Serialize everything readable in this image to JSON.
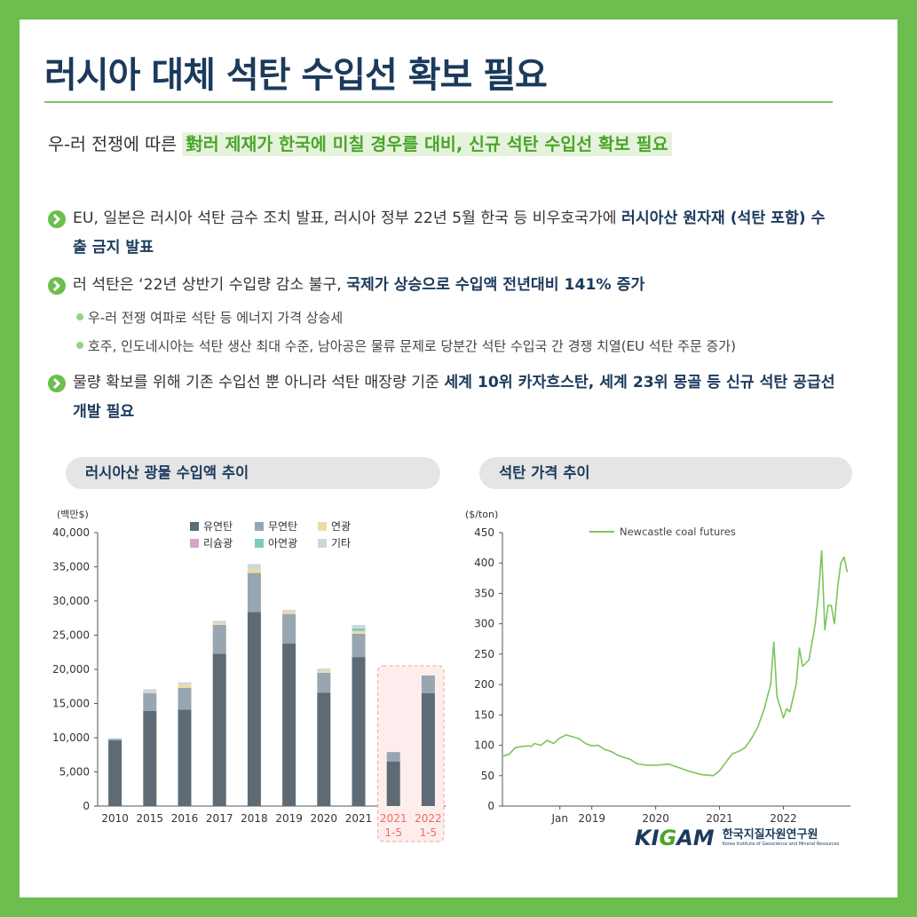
{
  "header": {
    "title": "러시아 대체 석탄 수입선 확보 필요"
  },
  "intro": {
    "prefix": "우-러 전쟁에 따른 ",
    "highlight": "對러 제재가 한국에 미칠 경우를 대비, 신규 석탄 수입선 확보 필요"
  },
  "bullets": [
    {
      "normal": "EU, 일본은 러시아 석탄 금수 조치 발표, 러시아 정부 22년 5월 한국 등 비우호국가에 ",
      "bold": "러시아산 원자재 (석탄 포함) 수출 금지 발표"
    },
    {
      "normal": "러 석탄은 ‘22년 상반기 수입량 감소 불구, ",
      "bold": "국제가 상승으로 수입액 전년대비 141% 증가"
    },
    {
      "normal": "물량 확보를 위해 기존 수입선 뿐 아니라 석탄 매장량 기준 ",
      "bold": "세계 10위 카자흐스탄, 세계 23위 몽골 등 신규 석탄 공급선 개발 필요"
    }
  ],
  "sub_bullets": [
    "우-러 전쟁 여파로 석탄 등 에너지 가격 상승세",
    "호주, 인도네시아는 석탄 생산 최대 수준, 남아공은 물류 문제로 당분간 석탄 수입국 간 경쟁 치열(EU 석탄 주문 증가)"
  ],
  "sections": {
    "left_title": "러시아산 광물 수입액 추이",
    "right_title": "석탄 가격 추이"
  },
  "colors": {
    "bituminous": "#5e6b75",
    "anthracite": "#97a6b1",
    "lead": "#f1d9a6",
    "lithium": "#d7a3cb",
    "zinc": "#79cbbf",
    "other": "#cfd6db",
    "line": "#7cc45c",
    "highlight_text": "#f26b5b",
    "brand_blue": "#1b3a5c",
    "brand_green": "#6cbf4e"
  },
  "chart_data": [
    {
      "type": "bar",
      "stacked": true,
      "ylabel": "(백만$)",
      "ylim": [
        0,
        40000
      ],
      "yticks": [
        0,
        5000,
        10000,
        15000,
        20000,
        25000,
        30000,
        35000,
        40000
      ],
      "ytick_labels": [
        "0",
        "5,000",
        "10,000",
        "15,000",
        "20,000",
        "25,000",
        "30,000",
        "35,000",
        "40,000"
      ],
      "categories": [
        "2010",
        "2015",
        "2016",
        "2017",
        "2018",
        "2019",
        "2020",
        "2021",
        "2021 1-5",
        "2022 1-5"
      ],
      "category_lines": [
        [
          "2010"
        ],
        [
          "2015"
        ],
        [
          "2016"
        ],
        [
          "2017"
        ],
        [
          "2018"
        ],
        [
          "2019"
        ],
        [
          "2020"
        ],
        [
          "2021"
        ],
        [
          "2021",
          "1-5"
        ],
        [
          "2022",
          "1-5"
        ]
      ],
      "highlighted_categories": [
        "2021 1-5",
        "2022 1-5"
      ],
      "legend_position": "top",
      "series": [
        {
          "name": "유연탄",
          "color": "#5e6b75",
          "values": [
            9600,
            13900,
            14100,
            22300,
            28400,
            23800,
            16600,
            21800,
            6500,
            16500
          ]
        },
        {
          "name": "무연탄",
          "color": "#97a6b1",
          "values": [
            200,
            2600,
            3200,
            4200,
            5700,
            4300,
            2900,
            3400,
            1400,
            2600
          ]
        },
        {
          "name": "연광",
          "color": "#f1d9a6",
          "values": [
            0,
            0,
            500,
            300,
            600,
            400,
            300,
            400,
            0,
            0
          ]
        },
        {
          "name": "리슘광",
          "color": "#d7a3cb",
          "values": [
            0,
            0,
            0,
            0,
            0,
            0,
            0,
            0,
            0,
            0
          ]
        },
        {
          "name": "아연광",
          "color": "#79cbbf",
          "values": [
            0,
            0,
            0,
            0,
            0,
            0,
            0,
            400,
            0,
            0
          ]
        },
        {
          "name": "기타",
          "color": "#cfd6db",
          "values": [
            100,
            600,
            300,
            300,
            700,
            200,
            300,
            500,
            0,
            0
          ]
        }
      ]
    },
    {
      "type": "line",
      "ylabel": "($/ton)",
      "ylim": [
        0,
        450
      ],
      "yticks": [
        0,
        50,
        100,
        150,
        200,
        250,
        300,
        350,
        400,
        450
      ],
      "xlim": [
        2017.6,
        2023.05
      ],
      "xticks": [
        2018.5,
        2019,
        2020,
        2021,
        2022
      ],
      "xtick_labels": [
        "Jan",
        "2019",
        "2020",
        "2021",
        "2022"
      ],
      "legend_position": "top-left",
      "series": [
        {
          "name": "Newcastle coal futures",
          "x": [
            2017.6,
            2017.7,
            2017.8,
            2017.9,
            2018.0,
            2018.05,
            2018.1,
            2018.2,
            2018.3,
            2018.4,
            2018.5,
            2018.6,
            2018.7,
            2018.8,
            2018.9,
            2019.0,
            2019.1,
            2019.2,
            2019.3,
            2019.4,
            2019.5,
            2019.6,
            2019.7,
            2019.8,
            2019.9,
            2020.0,
            2020.2,
            2020.4,
            2020.5,
            2020.6,
            2020.7,
            2020.8,
            2020.9,
            2021.0,
            2021.1,
            2021.2,
            2021.3,
            2021.4,
            2021.5,
            2021.6,
            2021.7,
            2021.75,
            2021.8,
            2021.85,
            2021.9,
            2022.0,
            2022.05,
            2022.1,
            2022.2,
            2022.25,
            2022.3,
            2022.4,
            2022.5,
            2022.55,
            2022.6,
            2022.65,
            2022.7,
            2022.75,
            2022.8,
            2022.85,
            2022.9,
            2022.95,
            2023.0
          ],
          "y": [
            82,
            85,
            96,
            98,
            99,
            98,
            103,
            100,
            108,
            103,
            112,
            117,
            114,
            111,
            103,
            99,
            100,
            93,
            90,
            84,
            80,
            77,
            70,
            68,
            67,
            67,
            69,
            62,
            58,
            55,
            52,
            51,
            50,
            58,
            72,
            86,
            90,
            96,
            111,
            130,
            160,
            180,
            200,
            270,
            180,
            145,
            160,
            155,
            200,
            260,
            230,
            240,
            300,
            350,
            420,
            290,
            330,
            330,
            300,
            360,
            400,
            410,
            385
          ]
        }
      ]
    }
  ]
}
